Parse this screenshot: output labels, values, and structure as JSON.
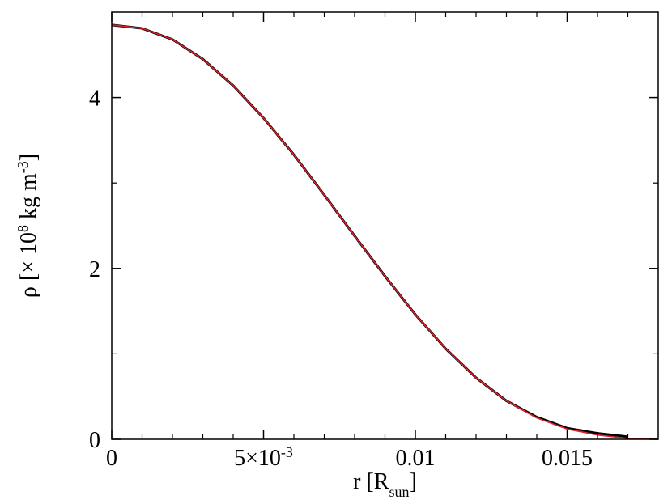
{
  "chart_data": {
    "type": "line",
    "xlabel": [
      {
        "text": "r [R"
      },
      {
        "text": "sun",
        "sub": true
      },
      {
        "text": "]"
      }
    ],
    "ylabel": [
      {
        "text": "ρ [× 10"
      },
      {
        "text": "8",
        "sup": true
      },
      {
        "text": " kg m"
      },
      {
        "text": "-3",
        "sup": true
      },
      {
        "text": "]"
      }
    ],
    "x": [
      0,
      0.001,
      0.002,
      0.003,
      0.004,
      0.005,
      0.006,
      0.007,
      0.008,
      0.009,
      0.01,
      0.011,
      0.012,
      0.013,
      0.014,
      0.015,
      0.016,
      0.017,
      0.018
    ],
    "series": [
      {
        "color": "#000000",
        "values": [
          4.85,
          4.81,
          4.68,
          4.45,
          4.14,
          3.76,
          3.33,
          2.86,
          2.38,
          1.91,
          1.46,
          1.06,
          0.72,
          0.45,
          0.26,
          0.13,
          0.07,
          0.03,
          null
        ]
      },
      {
        "color": "#e0232d",
        "values": [
          4.85,
          4.81,
          4.68,
          4.45,
          4.14,
          3.76,
          3.33,
          2.86,
          2.38,
          1.91,
          1.46,
          1.06,
          0.72,
          0.45,
          0.25,
          0.12,
          0.05,
          0.01,
          0
        ]
      }
    ],
    "xlim": [
      0,
      0.018
    ],
    "ylim": [
      0,
      5
    ],
    "xticks": [
      0,
      {
        "value": 0.005,
        "label": [
          {
            "text": "5×10"
          },
          {
            "text": "-3",
            "sup": true
          }
        ]
      },
      0.01,
      0.015
    ],
    "xminor": [
      0.001,
      0.002,
      0.003,
      0.004,
      0.006,
      0.007,
      0.008,
      0.009,
      0.011,
      0.012,
      0.013,
      0.014,
      0.016,
      0.017
    ],
    "yticks": [
      0,
      2,
      4
    ],
    "yminor": [
      1,
      3
    ],
    "grid": false
  }
}
